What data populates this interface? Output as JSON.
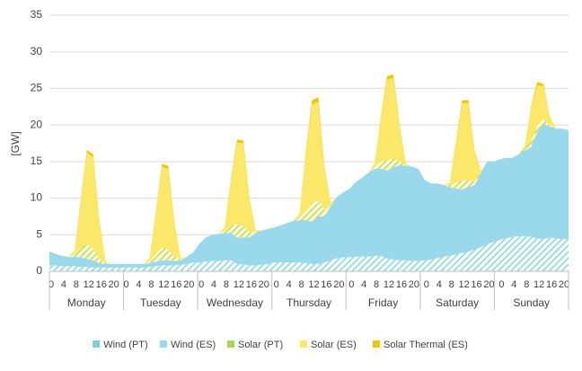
{
  "chart_data": {
    "type": "stacked_area",
    "y_label": "[GW]",
    "ylim": [
      0,
      35
    ],
    "yticks": [
      0,
      5,
      10,
      15,
      20,
      25,
      30,
      35
    ],
    "grid": true,
    "legend": "bottom",
    "days": [
      "Monday",
      "Tuesday",
      "Wednesday",
      "Thursday",
      "Friday",
      "Saturday",
      "Sunday"
    ],
    "categories": [
      0,
      null,
      4,
      null,
      8,
      null,
      12,
      null,
      16,
      null,
      20,
      null,
      0,
      null,
      4,
      null,
      8,
      null,
      12,
      null,
      16,
      null,
      20,
      null,
      0,
      null,
      4,
      null,
      8,
      null,
      12,
      null,
      16,
      null,
      20,
      null,
      0,
      null,
      4,
      null,
      8,
      null,
      12,
      null,
      16,
      null,
      20,
      null,
      0,
      null,
      4,
      null,
      8,
      null,
      12,
      null,
      16,
      null,
      20,
      null,
      0,
      null,
      4,
      null,
      8,
      null,
      12,
      null,
      16,
      null,
      20,
      null,
      0,
      null,
      4,
      null,
      8,
      null,
      12,
      null,
      16,
      null,
      20,
      null
    ],
    "series": [
      {
        "name": "Wind (PT)",
        "color": "#7fd0c8",
        "hatch": true,
        "values": [
          0.8,
          0.8,
          0.7,
          0.7,
          0.7,
          0.6,
          0.6,
          0.5,
          0.5,
          0.5,
          0.5,
          0.5,
          0.5,
          0.5,
          0.5,
          0.5,
          0.6,
          0.7,
          0.8,
          0.8,
          0.8,
          0.9,
          1.0,
          1.2,
          1.2,
          1.3,
          1.4,
          1.4,
          1.5,
          1.5,
          1.0,
          0.9,
          0.8,
          0.8,
          0.9,
          1.0,
          1.2,
          1.2,
          1.2,
          1.2,
          1.2,
          1.1,
          1.0,
          1.0,
          1.2,
          1.5,
          1.8,
          1.9,
          1.9,
          2.0,
          2.0,
          2.0,
          2.1,
          2.1,
          1.8,
          1.6,
          1.5,
          1.5,
          1.4,
          1.4,
          1.5,
          1.6,
          1.8,
          2.0,
          2.1,
          2.3,
          2.5,
          2.7,
          3.0,
          3.3,
          3.7,
          4.0,
          4.3,
          4.5,
          4.7,
          4.8,
          4.8,
          4.7,
          4.5,
          4.4,
          4.6,
          4.5,
          4.4,
          4.3
        ]
      },
      {
        "name": "Wind (ES)",
        "color": "#9ad9ec",
        "hatch": false,
        "values": [
          1.9,
          1.6,
          1.4,
          1.3,
          1.3,
          1.3,
          1.1,
          1.0,
          0.6,
          0.5,
          0.5,
          0.5,
          0.5,
          0.5,
          0.5,
          0.5,
          0.5,
          0.6,
          0.7,
          0.7,
          0.6,
          0.6,
          1.0,
          1.4,
          2.6,
          3.3,
          3.6,
          3.7,
          3.7,
          3.8,
          3.6,
          3.7,
          3.8,
          4.5,
          4.7,
          4.8,
          4.8,
          5.1,
          5.4,
          5.7,
          5.8,
          5.9,
          5.8,
          6.5,
          6.3,
          7.5,
          8.4,
          8.9,
          9.4,
          10.2,
          10.8,
          11.5,
          11.9,
          11.9,
          12.0,
          12.6,
          13.0,
          12.9,
          12.9,
          12.6,
          11.0,
          10.4,
          10.2,
          9.8,
          9.4,
          9.0,
          8.7,
          8.8,
          8.8,
          10.2,
          11.3,
          11.0,
          11.0,
          11.0,
          10.8,
          11.2,
          11.7,
          12.3,
          14.5,
          15.8,
          15.2,
          15.0,
          15.1,
          15.0
        ]
      },
      {
        "name": "Solar (PT)",
        "color": "#a6d65a",
        "hatch": true,
        "values": [
          0,
          0,
          0,
          0,
          0.3,
          1.2,
          2.0,
          1.6,
          0.6,
          0.1,
          0,
          0,
          0,
          0,
          0,
          0,
          0.3,
          1.0,
          1.8,
          1.5,
          0.6,
          0.1,
          0,
          0,
          0,
          0,
          0,
          0,
          0.3,
          1.0,
          1.8,
          1.6,
          0.7,
          0.1,
          0,
          0,
          0,
          0,
          0,
          0,
          0.3,
          1.2,
          2.5,
          2.2,
          0.8,
          0.1,
          0,
          0,
          0,
          0,
          0,
          0,
          0.3,
          1.0,
          1.4,
          1.2,
          0.5,
          0.1,
          0,
          0,
          0,
          0,
          0,
          0,
          0.2,
          0.8,
          1.2,
          1.0,
          0.4,
          0.1,
          0,
          0,
          0,
          0,
          0,
          0,
          0.2,
          0.7,
          0.9,
          0.6,
          0.2,
          0,
          0,
          0
        ]
      },
      {
        "name": "Solar (ES)",
        "color": "#fbe86a",
        "hatch": false,
        "values": [
          0,
          0,
          0,
          0,
          0.5,
          6.5,
          12.5,
          12.5,
          5,
          0.2,
          0,
          0,
          0,
          0,
          0,
          0,
          0.4,
          5.5,
          11,
          11,
          4.5,
          0.2,
          0,
          0,
          0,
          0,
          0,
          0,
          0.5,
          6,
          11.2,
          11.3,
          4.5,
          0.2,
          0,
          0,
          0,
          0,
          0,
          0,
          0.6,
          8,
          13.5,
          13.5,
          5.5,
          0.3,
          0,
          0,
          0,
          0,
          0,
          0,
          0.5,
          6,
          11,
          11,
          5,
          0.2,
          0,
          0,
          0,
          0,
          0,
          0,
          0.4,
          5.5,
          10.6,
          10.5,
          4,
          0.2,
          0,
          0,
          0,
          0,
          0,
          0,
          0.4,
          4.5,
          5.5,
          4.5,
          1,
          0,
          0,
          0
        ]
      },
      {
        "name": "Solar Thermal (ES)",
        "color": "#f2c500",
        "hatch": false,
        "values": [
          0,
          0,
          0,
          0,
          0,
          0.2,
          0.4,
          0.4,
          0.2,
          0,
          0,
          0,
          0,
          0,
          0,
          0,
          0,
          0.2,
          0.4,
          0.4,
          0.2,
          0,
          0,
          0,
          0,
          0,
          0,
          0,
          0,
          0.2,
          0.4,
          0.4,
          0.2,
          0,
          0,
          0,
          0,
          0,
          0,
          0,
          0,
          0.3,
          0.6,
          0.6,
          0.3,
          0,
          0,
          0,
          0,
          0,
          0,
          0,
          0,
          0.2,
          0.5,
          0.5,
          0.2,
          0,
          0,
          0,
          0,
          0,
          0,
          0,
          0,
          0.2,
          0.4,
          0.4,
          0.2,
          0,
          0,
          0,
          0,
          0,
          0,
          0,
          0,
          0.2,
          0.5,
          0.3,
          0.1,
          0,
          0,
          0
        ]
      }
    ]
  }
}
